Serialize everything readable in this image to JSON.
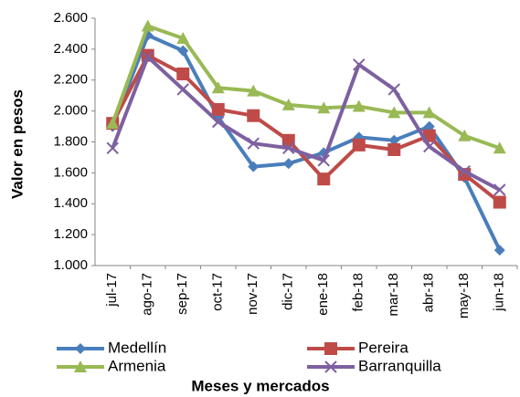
{
  "chart_data": {
    "type": "line",
    "y_label": "Valor en pesos",
    "x_label": "Meses y mercados",
    "categories": [
      "jul-17",
      "ago-17",
      "sep-17",
      "oct-17",
      "nov-17",
      "dic-17",
      "ene-18",
      "feb-18",
      "mar-18",
      "abr-18",
      "may-18",
      "jun-18"
    ],
    "series": [
      {
        "name": "Medellín",
        "color": "#4a7ebb",
        "marker": "diamond",
        "values": [
          1900,
          2490,
          2390,
          1960,
          1640,
          1660,
          1730,
          1830,
          1810,
          1900,
          1570,
          1100
        ]
      },
      {
        "name": "Pereira",
        "color": "#be4b48",
        "marker": "square",
        "values": [
          1920,
          2360,
          2240,
          2010,
          1970,
          1810,
          1560,
          1780,
          1750,
          1840,
          1590,
          1410
        ]
      },
      {
        "name": "Armenia",
        "color": "#98b954",
        "marker": "triangle",
        "values": [
          1920,
          2550,
          2470,
          2150,
          2130,
          2040,
          2020,
          2030,
          1990,
          1990,
          1840,
          1760
        ]
      },
      {
        "name": "Barranquilla",
        "color": "#7d60a0",
        "marker": "x",
        "values": [
          1760,
          2350,
          2140,
          1930,
          1790,
          1760,
          1680,
          2300,
          2140,
          1770,
          1610,
          1490
        ]
      }
    ],
    "ylim": [
      1000,
      2600
    ],
    "yticks": [
      {
        "value": 1000,
        "label": "1.000"
      },
      {
        "value": 1200,
        "label": "1.200"
      },
      {
        "value": 1400,
        "label": "1.400"
      },
      {
        "value": 1600,
        "label": "1.600"
      },
      {
        "value": 1800,
        "label": "1.800"
      },
      {
        "value": 2000,
        "label": "2.000"
      },
      {
        "value": 2200,
        "label": "2.200"
      },
      {
        "value": 2400,
        "label": "2.400"
      },
      {
        "value": 2600,
        "label": "2.600"
      }
    ],
    "legend": "bottom"
  }
}
